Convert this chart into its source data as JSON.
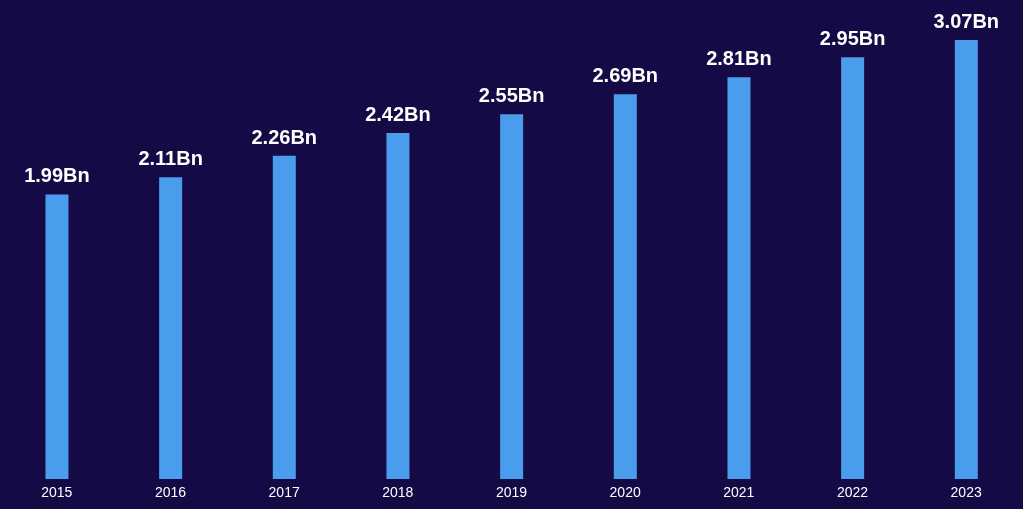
{
  "chart_data": {
    "type": "bar",
    "categories": [
      "2015",
      "2016",
      "2017",
      "2018",
      "2019",
      "2020",
      "2021",
      "2022",
      "2023"
    ],
    "values": [
      1.99,
      2.11,
      2.26,
      2.42,
      2.55,
      2.69,
      2.81,
      2.95,
      3.07
    ],
    "value_labels": [
      "1.99Bn",
      "2.11Bn",
      "2.26Bn",
      "2.42Bn",
      "2.55Bn",
      "2.69Bn",
      "2.81Bn",
      "2.95Bn",
      "3.07Bn"
    ],
    "color": "#4a9cec",
    "grid": false
  }
}
